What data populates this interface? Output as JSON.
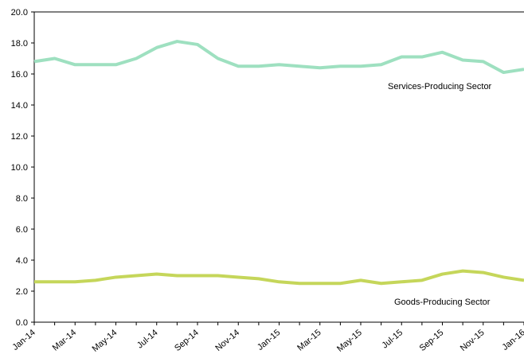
{
  "chart_data": {
    "type": "line",
    "title": "",
    "xlabel": "",
    "ylabel": "",
    "ylim": [
      0,
      20
    ],
    "yticks": [
      "0.0",
      "2.0",
      "4.0",
      "6.0",
      "8.0",
      "10.0",
      "12.0",
      "14.0",
      "16.0",
      "18.0",
      "20.0"
    ],
    "x": [
      "Jan-14",
      "Feb-14",
      "Mar-14",
      "Apr-14",
      "May-14",
      "Jun-14",
      "Jul-14",
      "Aug-14",
      "Sep-14",
      "Oct-14",
      "Nov-14",
      "Dec-14",
      "Jan-15",
      "Feb-15",
      "Mar-15",
      "Apr-15",
      "May-15",
      "Jun-15",
      "Jul-15",
      "Aug-15",
      "Sep-15",
      "Oct-15",
      "Nov-15",
      "Dec-15",
      "Jan-16"
    ],
    "xticks": [
      "Jan-14",
      "Mar-14",
      "May-14",
      "Jul-14",
      "Sep-14",
      "Nov-14",
      "Jan-15",
      "Mar-15",
      "May-15",
      "Jul-15",
      "Sep-15",
      "Nov-15",
      "Jan-16"
    ],
    "grid": false,
    "legend": "none",
    "series": [
      {
        "name": "Services-Producing Sector",
        "color": "#9ee0c0",
        "values": [
          16.8,
          17.0,
          16.6,
          16.6,
          16.6,
          17.0,
          17.7,
          18.1,
          17.9,
          17.0,
          16.5,
          16.5,
          16.6,
          16.5,
          16.4,
          16.5,
          16.5,
          16.6,
          17.1,
          17.1,
          17.4,
          16.9,
          16.8,
          16.1,
          16.3
        ]
      },
      {
        "name": "Goods-Producing Sector",
        "color": "#c5d65a",
        "values": [
          2.6,
          2.6,
          2.6,
          2.7,
          2.9,
          3.0,
          3.1,
          3.0,
          3.0,
          3.0,
          2.9,
          2.8,
          2.6,
          2.5,
          2.5,
          2.5,
          2.7,
          2.5,
          2.6,
          2.7,
          3.1,
          3.3,
          3.2,
          2.9,
          2.7
        ]
      }
    ]
  }
}
